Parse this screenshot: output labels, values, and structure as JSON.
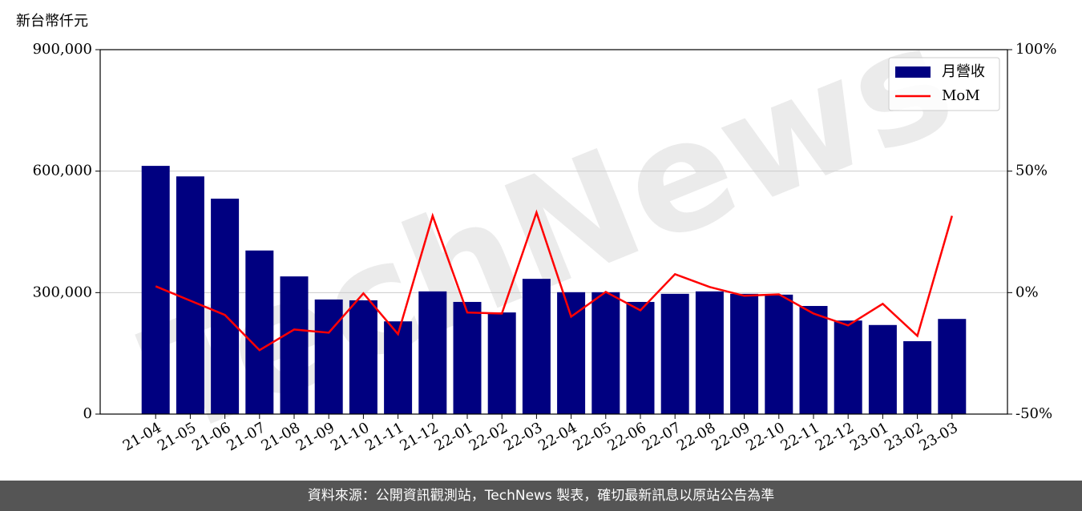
{
  "chart_data": {
    "type": "bar-line",
    "ylabel": "新台幣仟元",
    "watermark": "TechNews",
    "source": "資料來源：公開資訊觀測站，TechNews 製表，確切最新訊息以原站公告為準",
    "categories": [
      "21-04",
      "21-05",
      "21-06",
      "21-07",
      "21-08",
      "21-09",
      "21-10",
      "21-11",
      "21-12",
      "22-01",
      "22-02",
      "22-03",
      "22-04",
      "22-05",
      "22-06",
      "22-07",
      "22-08",
      "22-09",
      "22-10",
      "22-11",
      "22-12",
      "23-01",
      "23-02",
      "23-03"
    ],
    "series": [
      {
        "name": "月營收",
        "type": "bar",
        "color": "#000080",
        "axis": "y",
        "values": [
          613000,
          587000,
          532000,
          404000,
          340000,
          283000,
          281000,
          229000,
          303000,
          277000,
          251000,
          334000,
          301000,
          301000,
          277000,
          297000,
          303000,
          297000,
          295000,
          267000,
          231000,
          220000,
          180000,
          235000
        ]
      },
      {
        "name": "MoM",
        "type": "line",
        "color": "#ff0000",
        "axis": "y2",
        "values": [
          2.6,
          -3.3,
          -9.2,
          -23.7,
          -15.2,
          -16.5,
          -0.3,
          -17.1,
          31.6,
          -8.2,
          -8.6,
          33,
          -9.9,
          0.3,
          -7.3,
          7.6,
          2.3,
          -1.3,
          -0.7,
          -8.6,
          -13.5,
          -4.6,
          -17.8,
          31.6
        ]
      }
    ],
    "ylim": [
      0,
      900000
    ],
    "yticks": [
      0,
      {
        "value": 300000,
        "label": "300,000"
      },
      {
        "value": 600000,
        "label": "600,000"
      },
      {
        "value": 900000,
        "label": "900,000"
      }
    ],
    "y2lim": [
      -50,
      100
    ],
    "y2ticks": [
      {
        "value": -50,
        "label": "-50%"
      },
      {
        "value": 0,
        "label": "0%"
      },
      {
        "value": 50,
        "label": "50%"
      },
      {
        "value": 100,
        "label": "100%"
      }
    ],
    "grid": true,
    "legend": "upper right"
  }
}
